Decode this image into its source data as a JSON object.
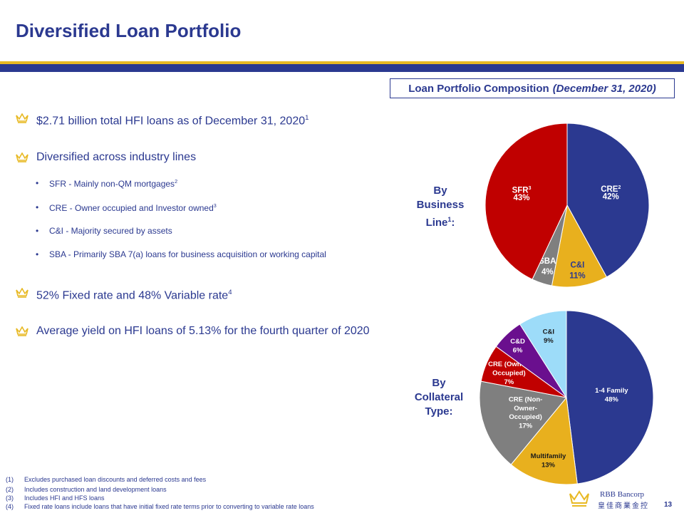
{
  "title": "Diversified Loan Portfolio",
  "composition_box": {
    "main": "Loan Portfolio Composition",
    "date": "(December 31, 2020)"
  },
  "bullets": [
    {
      "text": "$2.71 billion total HFI loans as of December 31, 2020",
      "sup": "1"
    },
    {
      "text": "Diversified across industry lines",
      "sup": ""
    },
    {
      "text": "52% Fixed rate and 48% Variable rate",
      "sup": "4"
    },
    {
      "text": "Average yield on HFI loans of 5.13% for the fourth quarter of 2020",
      "sup": ""
    }
  ],
  "sub_bullets": [
    {
      "text": "SFR - Mainly non-QM mortgages",
      "sup": "2"
    },
    {
      "text": "CRE - Owner occupied and Investor owned",
      "sup": "3"
    },
    {
      "text": "C&I - Majority secured by assets",
      "sup": ""
    },
    {
      "text": "SBA - Primarily SBA 7(a) loans for business acquisition or working capital",
      "sup": ""
    }
  ],
  "chart_labels": {
    "business_line": {
      "line1": "By",
      "line2": "Business",
      "line3": "Line",
      "sup": "1",
      "tail": ":"
    },
    "collateral_type": {
      "line1": "By",
      "line2": "Collateral",
      "line3": "Type:"
    }
  },
  "chart_data": [
    {
      "type": "pie",
      "title": "",
      "slices": [
        {
          "label": "CRE",
          "sup": "2",
          "value": 42,
          "display": "42%",
          "color": "#2B3990"
        },
        {
          "label": "C&I",
          "sup": "",
          "value": 11,
          "display": "11%",
          "color": "#E8B01E"
        },
        {
          "label": "SBA",
          "sup": "",
          "value": 4,
          "display": "4%",
          "color": "#7F7F7F"
        },
        {
          "label": "SFR",
          "sup": "3",
          "value": 43,
          "display": "43%",
          "color": "#C00000"
        }
      ]
    },
    {
      "type": "pie",
      "title": "",
      "slices": [
        {
          "label": "1-4 Family",
          "value": 48,
          "display": "48%",
          "color": "#2B3990"
        },
        {
          "label": "Multifamily",
          "value": 13,
          "display": "13%",
          "color": "#E8B01E"
        },
        {
          "label": "CRE (Non-Owner-Occupied)",
          "value": 17,
          "display": "17%",
          "color": "#7F7F7F"
        },
        {
          "label": "CRE (Owner-Occupied)",
          "value": 7,
          "display": "7%",
          "color": "#C00000"
        },
        {
          "label": "C&D",
          "value": 6,
          "display": "6%",
          "color": "#6A0F8E"
        },
        {
          "label": "C&I",
          "value": 9,
          "display": "9%",
          "color": "#9DDCF9"
        }
      ]
    }
  ],
  "footnotes": [
    {
      "num": "(1)",
      "text": "Excludes purchased loan discounts and deferred costs and fees"
    },
    {
      "num": "(2)",
      "text": "Includes construction and land development loans"
    },
    {
      "num": "(3)",
      "text": "Includes HFI and HFS loans"
    },
    {
      "num": "(4)",
      "text": "Fixed rate loans include loans that have initial fixed rate terms prior to converting to variable rate loans"
    }
  ],
  "logo": {
    "name": "RBB Bancorp",
    "chinese": "皇佳商業金控"
  },
  "page_number": "13",
  "colors": {
    "brand_navy": "#2B3990",
    "brand_gold": "#E8B923"
  }
}
